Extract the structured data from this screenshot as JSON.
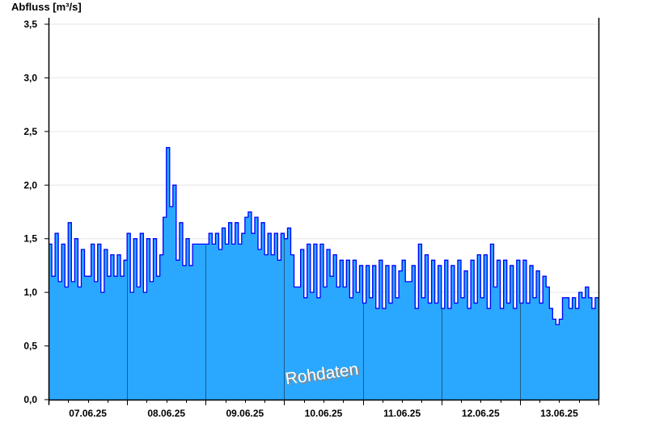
{
  "chart_data": {
    "type": "area",
    "ylabel": "Abfluss [m³/s]",
    "ylim": [
      0,
      3.5
    ],
    "yticks": [
      "0,0",
      "0,5",
      "1,0",
      "1,5",
      "2,0",
      "2,5",
      "3,0",
      "3,5"
    ],
    "ytick_values": [
      0,
      0.5,
      1.0,
      1.5,
      2.0,
      2.5,
      3.0,
      3.5
    ],
    "xlim": [
      "07.06.25 00:00",
      "14.06.25 00:00"
    ],
    "xticks": [
      "07.06.25",
      "08.06.25",
      "09.06.25",
      "10.06.25",
      "11.06.25",
      "12.06.25",
      "13.06.25"
    ],
    "x_resolution": "hourly",
    "grid": true,
    "annotation": "Rohdaten",
    "colors": {
      "fill": "#2aa8ff",
      "line": "#0000ff",
      "day_separator": "#1e5a8a",
      "grid": "#e6e6e6"
    },
    "values": [
      1.45,
      1.15,
      1.55,
      1.1,
      1.45,
      1.05,
      1.65,
      1.1,
      1.5,
      1.05,
      1.4,
      1.15,
      1.15,
      1.45,
      1.1,
      1.45,
      1.0,
      1.4,
      1.15,
      1.35,
      1.15,
      1.35,
      1.15,
      1.3,
      1.55,
      1.0,
      1.5,
      1.05,
      1.55,
      1.0,
      1.5,
      1.1,
      1.5,
      1.15,
      1.35,
      1.7,
      2.35,
      1.8,
      2.0,
      1.3,
      1.65,
      1.25,
      1.5,
      1.25,
      1.45,
      1.45,
      1.45,
      1.45,
      1.45,
      1.55,
      1.45,
      1.55,
      1.4,
      1.6,
      1.45,
      1.65,
      1.45,
      1.65,
      1.45,
      1.55,
      1.7,
      1.75,
      1.55,
      1.7,
      1.4,
      1.65,
      1.35,
      1.55,
      1.35,
      1.55,
      1.3,
      1.55,
      1.5,
      1.6,
      1.35,
      1.05,
      1.05,
      1.4,
      0.95,
      1.45,
      1.0,
      1.45,
      0.95,
      1.45,
      1.05,
      1.4,
      1.15,
      1.35,
      1.05,
      1.3,
      1.05,
      1.3,
      0.95,
      1.3,
      1.0,
      1.25,
      0.9,
      1.25,
      0.95,
      1.25,
      0.85,
      1.3,
      0.85,
      1.25,
      0.9,
      1.25,
      0.95,
      1.2,
      1.3,
      1.1,
      1.1,
      1.25,
      0.85,
      1.45,
      0.95,
      1.35,
      0.9,
      1.3,
      0.9,
      1.25,
      0.85,
      1.3,
      0.85,
      1.25,
      0.9,
      1.3,
      0.95,
      1.2,
      0.85,
      1.3,
      0.9,
      1.35,
      0.95,
      1.35,
      0.85,
      1.45,
      1.05,
      1.3,
      0.85,
      1.3,
      0.9,
      1.25,
      0.85,
      1.3,
      0.9,
      1.3,
      0.9,
      1.25,
      0.95,
      1.2,
      0.9,
      1.15,
      1.05,
      0.85,
      0.75,
      0.7,
      0.75,
      0.95,
      0.95,
      0.85,
      0.95,
      0.85,
      1.0,
      0.95,
      1.05,
      0.95,
      0.85,
      0.95
    ]
  }
}
